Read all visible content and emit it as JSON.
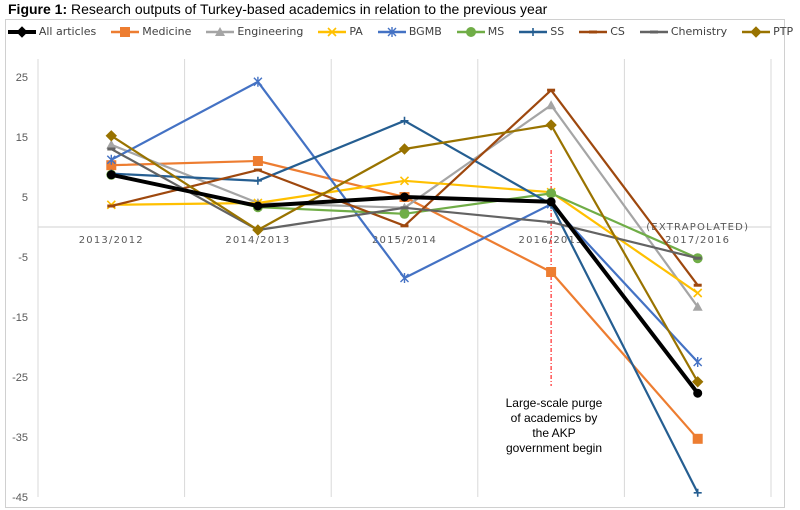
{
  "figure": {
    "label": "Figure 1:",
    "caption": "Research outputs of Turkey-based academics in relation to the previous year"
  },
  "chart_data": {
    "type": "line",
    "title": "Research outputs of Turkey-based academics in relation to the previous year",
    "xlabel": "",
    "ylabel": "",
    "categories": [
      "2013/2012",
      "2014/2013",
      "2015/2014",
      "2016/2015",
      "(EXTRAPOLATED) 2017/2016"
    ],
    "category_lines": [
      [
        "2013/2012"
      ],
      [
        "2014/2013"
      ],
      [
        "2015/2014"
      ],
      [
        "2016/2015"
      ],
      [
        "(EXTRAPOLATED)",
        "2017/2016"
      ]
    ],
    "ylim": [
      -45,
      28
    ],
    "yticks": [
      25,
      15,
      5,
      -5,
      -15,
      -25,
      -35,
      -45
    ],
    "grid": "vertical category separators",
    "legend_position": "top",
    "series": [
      {
        "name": "All articles",
        "color": "#000000",
        "marker": "diamond",
        "width": 4,
        "values": [
          8.7,
          3.5,
          5.0,
          4.2,
          -27.7
        ]
      },
      {
        "name": "Medicine",
        "color": "#ED7D31",
        "marker": "square",
        "width": 2.2,
        "values": [
          10.3,
          11.0,
          5.0,
          -7.5,
          -35.3
        ]
      },
      {
        "name": "Engineering",
        "color": "#A5A5A5",
        "marker": "triangle",
        "width": 2.2,
        "values": [
          13.7,
          4.0,
          3.2,
          20.3,
          -13.3
        ]
      },
      {
        "name": "PA",
        "color": "#FFC000",
        "marker": "x",
        "width": 2.2,
        "values": [
          3.7,
          4.0,
          7.7,
          5.8,
          -11.0
        ]
      },
      {
        "name": "BGMB",
        "color": "#4472C4",
        "marker": "star",
        "width": 2.2,
        "values": [
          11.2,
          24.2,
          -8.5,
          3.8,
          -22.5
        ]
      },
      {
        "name": "MS",
        "color": "#70AD47",
        "marker": "circle",
        "width": 2.2,
        "values": [
          8.7,
          3.3,
          2.2,
          5.6,
          -5.2
        ]
      },
      {
        "name": "SS",
        "color": "#255E91",
        "marker": "plus",
        "width": 2.2,
        "values": [
          8.9,
          7.7,
          17.7,
          3.8,
          -44.3
        ]
      },
      {
        "name": "CS",
        "color": "#9E480E",
        "marker": "dash",
        "width": 2.2,
        "values": [
          3.5,
          9.5,
          0.2,
          22.8,
          -9.7
        ]
      },
      {
        "name": "Chemistry",
        "color": "#636363",
        "marker": "dash",
        "width": 2.2,
        "values": [
          13.0,
          -0.5,
          3.2,
          0.8,
          -5.2
        ]
      },
      {
        "name": "PTP",
        "color": "#997300",
        "marker": "diamond",
        "width": 2.2,
        "values": [
          15.2,
          -0.5,
          13.0,
          17.0,
          -25.8
        ]
      }
    ],
    "annotations": [
      {
        "type": "vertical-dashed-line",
        "at_category": "2016/2015",
        "color": "#FF0000"
      },
      {
        "type": "text",
        "at_category": "2016/2015",
        "text": "Large-scale purge of academics by the AKP government begin"
      }
    ]
  },
  "annotation": {
    "lines": [
      "Large-scale purge",
      "of academics by",
      "the AKP",
      "government begin"
    ]
  }
}
